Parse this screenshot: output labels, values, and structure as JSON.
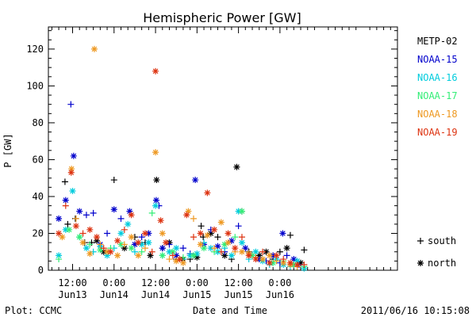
{
  "chart_data": {
    "type": "scatter",
    "title": "Hemispheric Power [GW]",
    "xlabel": "Date and Time",
    "ylabel": "P [GW]",
    "footer_left": "Plot: CCMC",
    "footer_right": "2011/06/16 10:15:08",
    "ylim": [
      0,
      132
    ],
    "yticks": [
      0,
      20,
      40,
      60,
      80,
      100,
      120
    ],
    "x_unit": "hours from 2011/06/13 00:00",
    "xlim": [
      5,
      106
    ],
    "xticks": [
      {
        "x": 12,
        "line1": "12:00",
        "line2": "Jun13"
      },
      {
        "x": 24,
        "line1": "0:00",
        "line2": "Jun14"
      },
      {
        "x": 36,
        "line1": "12:00",
        "line2": "Jun14"
      },
      {
        "x": 48,
        "line1": "0:00",
        "line2": "Jun15"
      },
      {
        "x": 60,
        "line1": "12:00",
        "line2": "Jun15"
      },
      {
        "x": 72,
        "line1": "0:00",
        "line2": "Jun16"
      }
    ],
    "legend_placement": "right",
    "marker_legend": [
      {
        "symbol": "+",
        "label": "south"
      },
      {
        "symbol": "*",
        "label": "north"
      }
    ],
    "series": [
      {
        "name": "METP-02",
        "color": "#000000",
        "points": [
          [
            9.8,
            48,
            "+"
          ],
          [
            10.6,
            25,
            "+"
          ],
          [
            12.8,
            28,
            "+"
          ],
          [
            15.5,
            15,
            "+"
          ],
          [
            17.5,
            15,
            "+"
          ],
          [
            19,
            16,
            "*"
          ],
          [
            21,
            10,
            "*"
          ],
          [
            24,
            49,
            "+"
          ],
          [
            27,
            12,
            "*"
          ],
          [
            30,
            18,
            "+"
          ],
          [
            33,
            15,
            "+"
          ],
          [
            34.5,
            8,
            "*"
          ],
          [
            36.3,
            49,
            "*"
          ],
          [
            38,
            12,
            "+"
          ],
          [
            40,
            15,
            "*"
          ],
          [
            42,
            6,
            "+"
          ],
          [
            44,
            6,
            "*"
          ],
          [
            46,
            6,
            "+"
          ],
          [
            48,
            7,
            "*"
          ],
          [
            49.2,
            24,
            "+"
          ],
          [
            49.8,
            18,
            "+"
          ],
          [
            52,
            20,
            "*"
          ],
          [
            54,
            18,
            "+"
          ],
          [
            56,
            8,
            "*"
          ],
          [
            58,
            6,
            "+"
          ],
          [
            59.5,
            56,
            "*"
          ],
          [
            61,
            32,
            "+"
          ],
          [
            63,
            10,
            "+"
          ],
          [
            66,
            8,
            "*"
          ],
          [
            68,
            10,
            "*"
          ],
          [
            70,
            6,
            "+"
          ],
          [
            72,
            10,
            "+"
          ],
          [
            74,
            12,
            "*"
          ],
          [
            75,
            19,
            "+"
          ],
          [
            78,
            4,
            "*"
          ],
          [
            79,
            11,
            "+"
          ]
        ]
      },
      {
        "name": "NOAA-15",
        "color": "#0000cc",
        "points": [
          [
            8,
            28,
            "*"
          ],
          [
            10,
            38,
            "*"
          ],
          [
            11.5,
            90,
            "+"
          ],
          [
            12.3,
            62,
            "*"
          ],
          [
            14,
            32,
            "*"
          ],
          [
            16,
            30,
            "+"
          ],
          [
            18,
            31,
            "+"
          ],
          [
            20,
            14,
            "*"
          ],
          [
            22,
            20,
            "+"
          ],
          [
            24,
            33,
            "*"
          ],
          [
            26,
            28,
            "+"
          ],
          [
            28.5,
            32,
            "*"
          ],
          [
            30,
            14,
            "*"
          ],
          [
            32,
            18,
            "+"
          ],
          [
            34,
            20,
            "*"
          ],
          [
            36.2,
            38,
            "*"
          ],
          [
            37,
            35,
            "+"
          ],
          [
            38,
            12,
            "*"
          ],
          [
            40,
            14,
            "+"
          ],
          [
            42,
            8,
            "*"
          ],
          [
            44,
            12,
            "+"
          ],
          [
            46,
            9,
            "+"
          ],
          [
            47.5,
            49,
            "*"
          ],
          [
            50,
            14,
            "*"
          ],
          [
            52,
            22,
            "+"
          ],
          [
            54,
            13,
            "*"
          ],
          [
            56,
            10,
            "+"
          ],
          [
            58,
            16,
            "*"
          ],
          [
            60,
            24,
            "+"
          ],
          [
            62,
            12,
            "*"
          ],
          [
            64,
            8,
            "+"
          ],
          [
            66,
            6,
            "*"
          ],
          [
            68,
            5,
            "+"
          ],
          [
            70,
            8,
            "*"
          ],
          [
            72,
            4,
            "+"
          ],
          [
            72.8,
            20,
            "*"
          ],
          [
            74,
            8,
            "+"
          ],
          [
            76,
            6,
            "*"
          ],
          [
            77.5,
            3,
            "+"
          ]
        ]
      },
      {
        "name": "NOAA-16",
        "color": "#00ccdd",
        "points": [
          [
            8,
            8,
            "*"
          ],
          [
            10,
            22,
            "*"
          ],
          [
            12,
            43,
            "*"
          ],
          [
            14,
            18,
            "+"
          ],
          [
            16,
            12,
            "*"
          ],
          [
            18,
            10,
            "+"
          ],
          [
            20,
            13,
            "*"
          ],
          [
            22,
            8,
            "*"
          ],
          [
            24,
            12,
            "+"
          ],
          [
            26,
            20,
            "*"
          ],
          [
            28,
            25,
            "*"
          ],
          [
            30,
            10,
            "+"
          ],
          [
            32,
            14,
            "*"
          ],
          [
            34,
            15,
            "*"
          ],
          [
            36,
            35,
            "*"
          ],
          [
            38,
            8,
            "+"
          ],
          [
            40,
            10,
            "*"
          ],
          [
            42,
            12,
            "*"
          ],
          [
            44,
            6,
            "+"
          ],
          [
            46,
            8,
            "*"
          ],
          [
            48,
            9,
            "*"
          ],
          [
            50,
            15,
            "+"
          ],
          [
            52,
            12,
            "*"
          ],
          [
            54,
            10,
            "*"
          ],
          [
            56,
            12,
            "+"
          ],
          [
            58,
            8,
            "*"
          ],
          [
            60,
            32,
            "*"
          ],
          [
            61,
            15,
            "*"
          ],
          [
            63,
            6,
            "+"
          ],
          [
            65,
            10,
            "*"
          ],
          [
            67,
            5,
            "*"
          ],
          [
            69,
            3,
            "+"
          ],
          [
            71,
            6,
            "*"
          ],
          [
            73,
            3,
            "*"
          ],
          [
            75,
            2,
            "+"
          ],
          [
            77,
            5,
            "*"
          ],
          [
            79,
            1,
            "*"
          ]
        ]
      },
      {
        "name": "NOAA-17",
        "color": "#33ee77",
        "points": [
          [
            8,
            6,
            "+"
          ],
          [
            11,
            22,
            "*"
          ],
          [
            14,
            18,
            "*"
          ],
          [
            17,
            14,
            "+"
          ],
          [
            20,
            11,
            "*"
          ],
          [
            23,
            12,
            "+"
          ],
          [
            26,
            14,
            "*"
          ],
          [
            29,
            12,
            "*"
          ],
          [
            32,
            10,
            "+"
          ],
          [
            35,
            31,
            "+"
          ],
          [
            38,
            8,
            "*"
          ],
          [
            41,
            10,
            "*"
          ],
          [
            44,
            7,
            "+"
          ],
          [
            47,
            8,
            "*"
          ],
          [
            50,
            12,
            "*"
          ],
          [
            53,
            10,
            "+"
          ],
          [
            56,
            14,
            "*"
          ],
          [
            59,
            18,
            "+"
          ],
          [
            61,
            32,
            "*"
          ],
          [
            64,
            8,
            "*"
          ],
          [
            67,
            6,
            "+"
          ],
          [
            70,
            4,
            "*"
          ],
          [
            73,
            5,
            "+"
          ],
          [
            76,
            3,
            "*"
          ],
          [
            79,
            2,
            "+"
          ]
        ]
      },
      {
        "name": "NOAA-18",
        "color": "#ee9922",
        "points": [
          [
            9,
            18,
            "*"
          ],
          [
            11.7,
            55,
            "*"
          ],
          [
            13,
            28,
            "+"
          ],
          [
            15,
            15,
            "*"
          ],
          [
            17,
            9,
            "*"
          ],
          [
            18.3,
            120,
            "*"
          ],
          [
            20,
            14,
            "+"
          ],
          [
            22,
            10,
            "*"
          ],
          [
            25,
            8,
            "*"
          ],
          [
            27,
            14,
            "+"
          ],
          [
            29,
            18,
            "*"
          ],
          [
            31,
            8,
            "*"
          ],
          [
            33,
            12,
            "+"
          ],
          [
            36,
            64,
            "*"
          ],
          [
            38,
            20,
            "*"
          ],
          [
            40,
            6,
            "+"
          ],
          [
            42,
            5,
            "*"
          ],
          [
            44,
            4,
            "*"
          ],
          [
            45.5,
            32,
            "*"
          ],
          [
            47,
            28,
            "+"
          ],
          [
            49,
            14,
            "*"
          ],
          [
            51,
            19,
            "*"
          ],
          [
            53,
            12,
            "+"
          ],
          [
            55,
            26,
            "*"
          ],
          [
            57,
            15,
            "*"
          ],
          [
            59,
            10,
            "+"
          ],
          [
            61,
            10,
            "*"
          ],
          [
            63,
            9,
            "*"
          ],
          [
            65,
            7,
            "+"
          ],
          [
            67,
            6,
            "*"
          ],
          [
            69,
            8,
            "*"
          ],
          [
            71,
            5,
            "+"
          ],
          [
            73,
            4,
            "*"
          ],
          [
            75,
            3,
            "*"
          ],
          [
            77,
            2,
            "+"
          ]
        ]
      },
      {
        "name": "NOAA-19",
        "color": "#dd3311",
        "points": [
          [
            8,
            20,
            "*"
          ],
          [
            10,
            35,
            "+"
          ],
          [
            11.6,
            53,
            "*"
          ],
          [
            13,
            24,
            "*"
          ],
          [
            15,
            20,
            "+"
          ],
          [
            17,
            22,
            "*"
          ],
          [
            19,
            18,
            "*"
          ],
          [
            21,
            12,
            "+"
          ],
          [
            23,
            10,
            "*"
          ],
          [
            25,
            16,
            "*"
          ],
          [
            27,
            22,
            "+"
          ],
          [
            29,
            30,
            "*"
          ],
          [
            31,
            15,
            "*"
          ],
          [
            33,
            20,
            "*"
          ],
          [
            35,
            10,
            "+"
          ],
          [
            36,
            108,
            "*"
          ],
          [
            37.5,
            27,
            "*"
          ],
          [
            39,
            15,
            "*"
          ],
          [
            41,
            8,
            "+"
          ],
          [
            43,
            6,
            "*"
          ],
          [
            45,
            30,
            "*"
          ],
          [
            47,
            18,
            "+"
          ],
          [
            49,
            20,
            "*"
          ],
          [
            51,
            42,
            "*"
          ],
          [
            53,
            22,
            "*"
          ],
          [
            55,
            10,
            "+"
          ],
          [
            57,
            20,
            "*"
          ],
          [
            59,
            12,
            "*"
          ],
          [
            61,
            18,
            "+"
          ],
          [
            63,
            8,
            "*"
          ],
          [
            65,
            6,
            "*"
          ],
          [
            67,
            10,
            "+"
          ],
          [
            69,
            4,
            "*"
          ],
          [
            71,
            8,
            "*"
          ],
          [
            73,
            6,
            "+"
          ],
          [
            75,
            4,
            "*"
          ],
          [
            77,
            3,
            "*"
          ],
          [
            79,
            3,
            "+"
          ]
        ]
      }
    ]
  }
}
